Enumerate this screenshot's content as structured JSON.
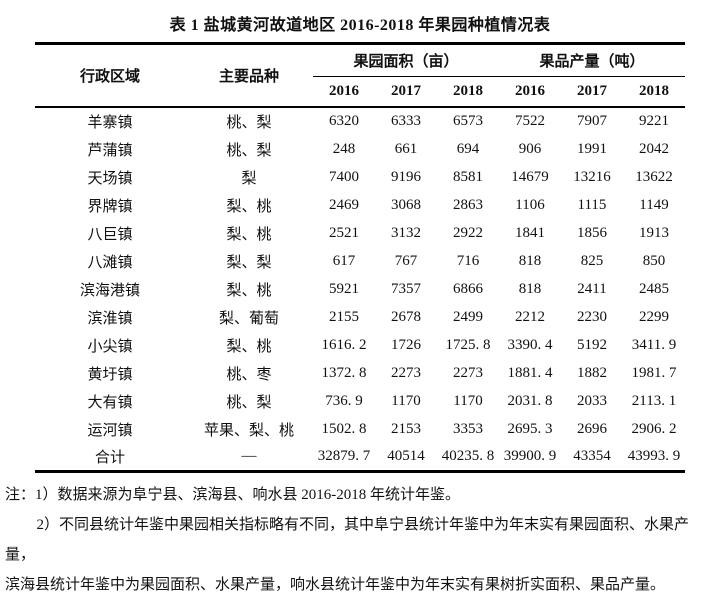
{
  "title": "表 1 盐城黄河故道地区 2016-2018 年果园种植情况表",
  "table": {
    "headers": {
      "region": "行政区域",
      "varieties": "主要品种",
      "area_group": "果园面积（亩）",
      "yield_group": "果品产量（吨）",
      "years": [
        "2016",
        "2017",
        "2018",
        "2016",
        "2017",
        "2018"
      ]
    },
    "rows": [
      {
        "region": "羊寨镇",
        "varieties": "桃、梨",
        "values": [
          "6320",
          "6333",
          "6573",
          "7522",
          "7907",
          "9221"
        ]
      },
      {
        "region": "芦蒲镇",
        "varieties": "桃、梨",
        "values": [
          "248",
          "661",
          "694",
          "906",
          "1991",
          "2042"
        ]
      },
      {
        "region": "天场镇",
        "varieties": "梨",
        "values": [
          "7400",
          "9196",
          "8581",
          "14679",
          "13216",
          "13622"
        ]
      },
      {
        "region": "界牌镇",
        "varieties": "梨、桃",
        "values": [
          "2469",
          "3068",
          "2863",
          "1106",
          "1115",
          "1149"
        ]
      },
      {
        "region": "八巨镇",
        "varieties": "梨、桃",
        "values": [
          "2521",
          "3132",
          "2922",
          "1841",
          "1856",
          "1913"
        ]
      },
      {
        "region": "八滩镇",
        "varieties": "梨、梨",
        "values": [
          "617",
          "767",
          "716",
          "818",
          "825",
          "850"
        ]
      },
      {
        "region": "滨海港镇",
        "varieties": "梨、桃",
        "values": [
          "5921",
          "7357",
          "6866",
          "818",
          "2411",
          "2485"
        ]
      },
      {
        "region": "滨淮镇",
        "varieties": "梨、葡萄",
        "values": [
          "2155",
          "2678",
          "2499",
          "2212",
          "2230",
          "2299"
        ]
      },
      {
        "region": "小尖镇",
        "varieties": "梨、桃",
        "values": [
          "1616. 2",
          "1726",
          "1725. 8",
          "3390. 4",
          "5192",
          "3411. 9"
        ]
      },
      {
        "region": "黄圩镇",
        "varieties": "桃、枣",
        "values": [
          "1372. 8",
          "2273",
          "2273",
          "1881. 4",
          "1882",
          "1981. 7"
        ]
      },
      {
        "region": "大有镇",
        "varieties": "桃、梨",
        "values": [
          "736. 9",
          "1170",
          "1170",
          "2031. 8",
          "2033",
          "2113. 1"
        ]
      },
      {
        "region": "运河镇",
        "varieties": "苹果、梨、桃",
        "values": [
          "1502. 8",
          "2153",
          "3353",
          "2695. 3",
          "2696",
          "2906. 2"
        ]
      },
      {
        "region": "合计",
        "varieties": "—",
        "values": [
          "32879. 7",
          "40514",
          "40235. 8",
          "39900. 9",
          "43354",
          "43993. 9"
        ]
      }
    ],
    "total_row_label": "合计"
  },
  "notes": [
    "注：1）数据来源为阜宁县、滨海县、响水县 2016-2018 年统计年鉴。",
    "2）不同县统计年鉴中果园相关指标略有不同，其中阜宁县统计年鉴中为年末实有果园面积、水果产量，",
    "滨海县统计年鉴中为果园面积、水果产量，响水县统计年鉴中为年末实有果树折实面积、果品产量。"
  ]
}
